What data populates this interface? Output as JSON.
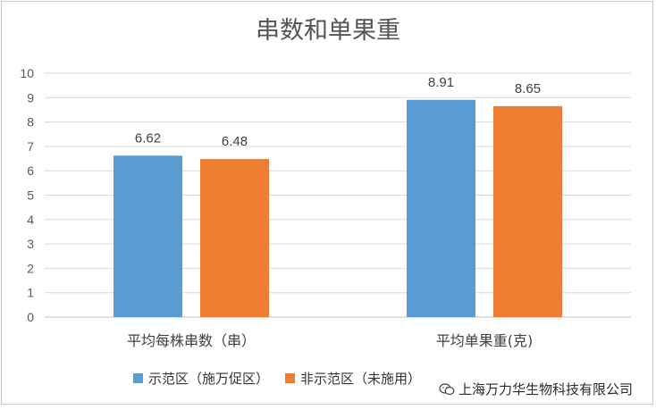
{
  "chart_data": {
    "type": "bar",
    "title": "串数和单果重",
    "categories": [
      "平均每株串数（串）",
      "平均单果重(克)"
    ],
    "series": [
      {
        "name": "示范区（施万促区）",
        "color": "#5b9bd5",
        "values": [
          6.62,
          8.91
        ],
        "labels": [
          "6.62",
          "8.91"
        ]
      },
      {
        "name": "非示范区（未施用）",
        "color": "#ed7d31",
        "values": [
          6.48,
          8.65
        ],
        "labels": [
          "6.48",
          "8.65"
        ]
      }
    ],
    "ylim": [
      0,
      10
    ],
    "yticks": [
      0,
      1,
      2,
      3,
      4,
      5,
      6,
      7,
      8,
      9,
      10
    ],
    "grid": true,
    "legend": "bottom"
  },
  "watermark": {
    "text": "上海万力华生物科技有限公司",
    "icon": "wechat-icon"
  }
}
